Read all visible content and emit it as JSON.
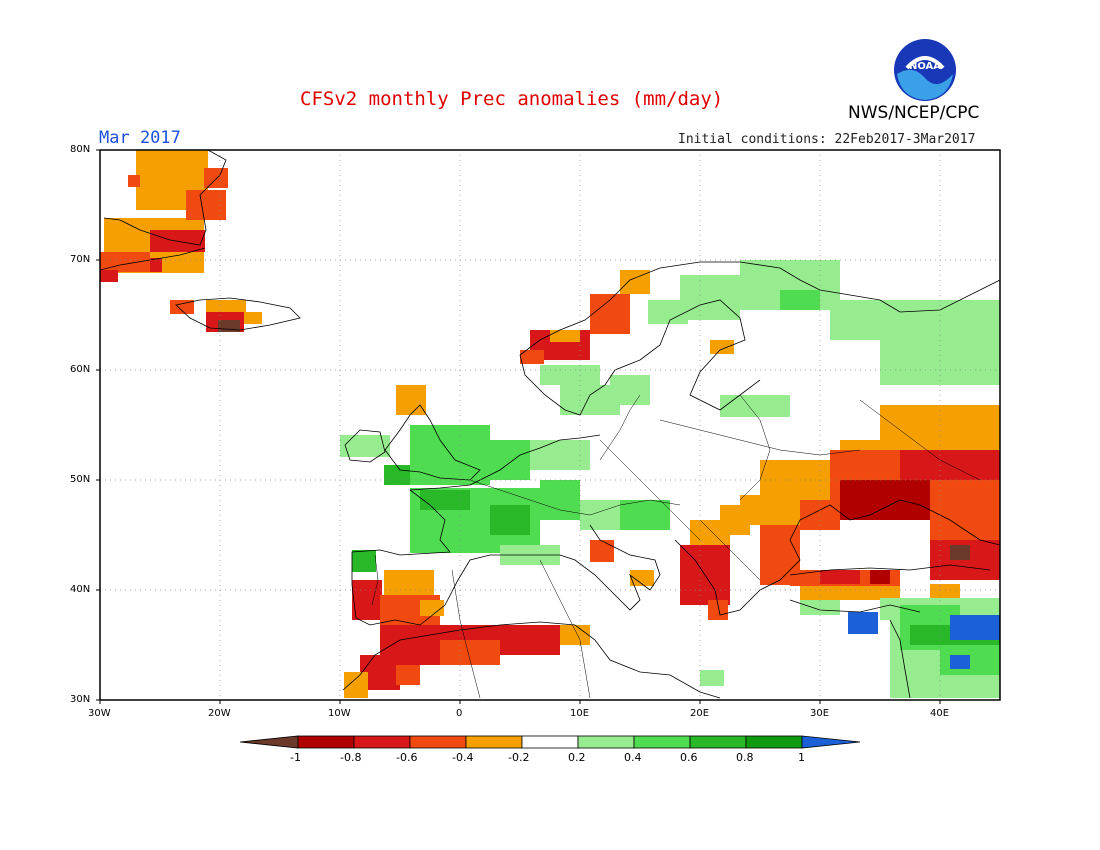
{
  "header": {
    "title": "CFSv2 monthly Prec anomalies (mm/day)",
    "month": "Mar 2017",
    "initial_conditions": "Initial conditions: 22Feb2017-3Mar2017",
    "org": "NWS/NCEP/CPC",
    "logo_text": "NOAA"
  },
  "axes": {
    "lat_labels": [
      "80N",
      "70N",
      "60N",
      "50N",
      "40N",
      "30N"
    ],
    "lon_labels": [
      "30W",
      "20W",
      "10W",
      "0",
      "10E",
      "20E",
      "30E",
      "40E"
    ]
  },
  "colorbar": {
    "labels": [
      "-1",
      "-0.8",
      "-0.6",
      "-0.4",
      "-0.2",
      "0.2",
      "0.4",
      "0.6",
      "0.8",
      "1"
    ],
    "colors": {
      "below_-1": "#6b3a2a",
      "-1_-0.8": "#b00000",
      "-0.8_-0.6": "#d81818",
      "-0.6_-0.4": "#f04a10",
      "-0.4_-0.2": "#f5a000",
      "-0.2_0.2": "#ffffff",
      "0.2_0.4": "#98ec90",
      "0.4_0.6": "#50dc50",
      "0.6_0.8": "#28b828",
      "0.8_1": "#109a10",
      "above_1": "#1c60d8"
    }
  }
}
